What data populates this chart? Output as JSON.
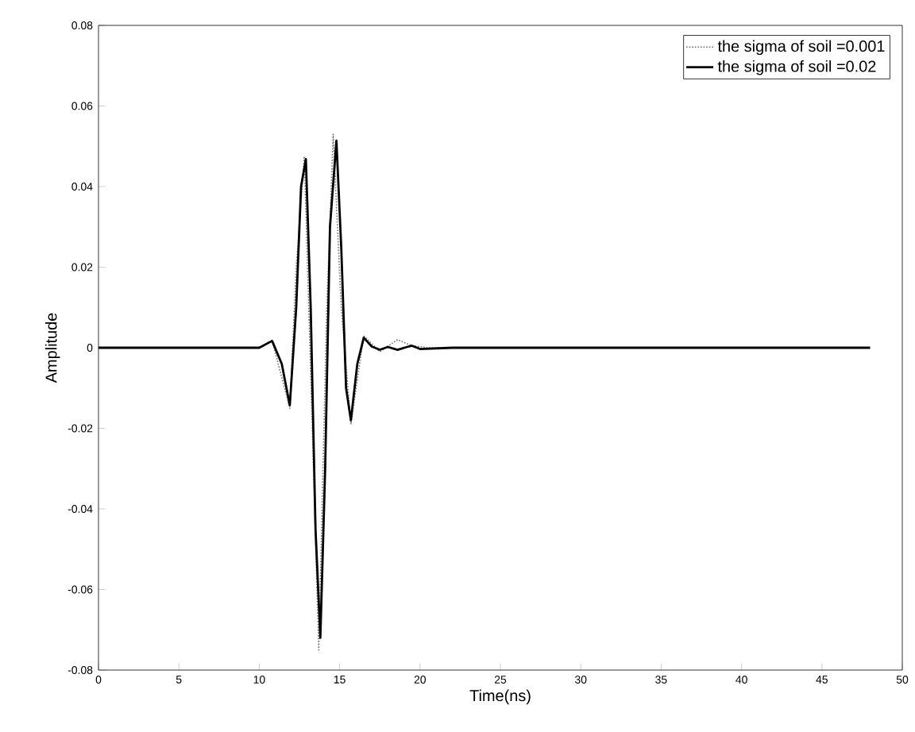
{
  "chart_data": {
    "type": "line",
    "xlabel": "Time(ns)",
    "ylabel": "Amplitude",
    "xlim": [
      0,
      50
    ],
    "ylim": [
      -0.08,
      0.08
    ],
    "xticks": [
      0,
      5,
      10,
      15,
      20,
      25,
      30,
      35,
      40,
      45,
      50
    ],
    "yticks": [
      -0.08,
      -0.06,
      -0.04,
      -0.02,
      0,
      0.02,
      0.04,
      0.06,
      0.08
    ],
    "legend": "top right",
    "grid": false,
    "series": [
      {
        "name": "the sigma of soil =0.001",
        "color": "#707070",
        "line_style": "dotted",
        "x": [
          0,
          5,
          10,
          10.8,
          11.9,
          12.3,
          12.8,
          13.3,
          13.7,
          14.2,
          14.6,
          15.1,
          15.7,
          16.5,
          17.5,
          18.6,
          19.5,
          20.5,
          25,
          30,
          35,
          40,
          45,
          48
        ],
        "values": [
          0,
          0,
          0,
          0.0018,
          -0.015,
          0.02,
          0.0475,
          -0.02,
          -0.075,
          0.01,
          0.053,
          0.01,
          -0.019,
          0.003,
          -0.001,
          0.002,
          0.0005,
          0,
          0,
          0,
          0,
          0,
          0,
          0
        ]
      },
      {
        "name": "the sigma of soil =0.02",
        "color": "#000000",
        "line_style": "solid",
        "x": [
          0,
          5,
          9,
          10,
          10.8,
          11.4,
          11.9,
          12.3,
          12.6,
          12.9,
          13.2,
          13.5,
          13.8,
          14.1,
          14.4,
          14.8,
          15.1,
          15.4,
          15.7,
          16.1,
          16.5,
          17,
          17.5,
          18,
          18.6,
          19.2,
          19.5,
          20,
          22,
          25,
          30,
          35,
          40,
          45,
          48
        ],
        "values": [
          0,
          0,
          0,
          0,
          0.0017,
          -0.004,
          -0.0143,
          0.01,
          0.04,
          0.0468,
          0.01,
          -0.045,
          -0.072,
          -0.03,
          0.03,
          0.0514,
          0.025,
          -0.01,
          -0.018,
          -0.004,
          0.0025,
          0.0003,
          -0.0005,
          0.0002,
          -0.0005,
          0.0002,
          0.0005,
          -0.0003,
          0,
          0,
          0,
          0,
          0,
          0,
          0
        ]
      }
    ]
  }
}
